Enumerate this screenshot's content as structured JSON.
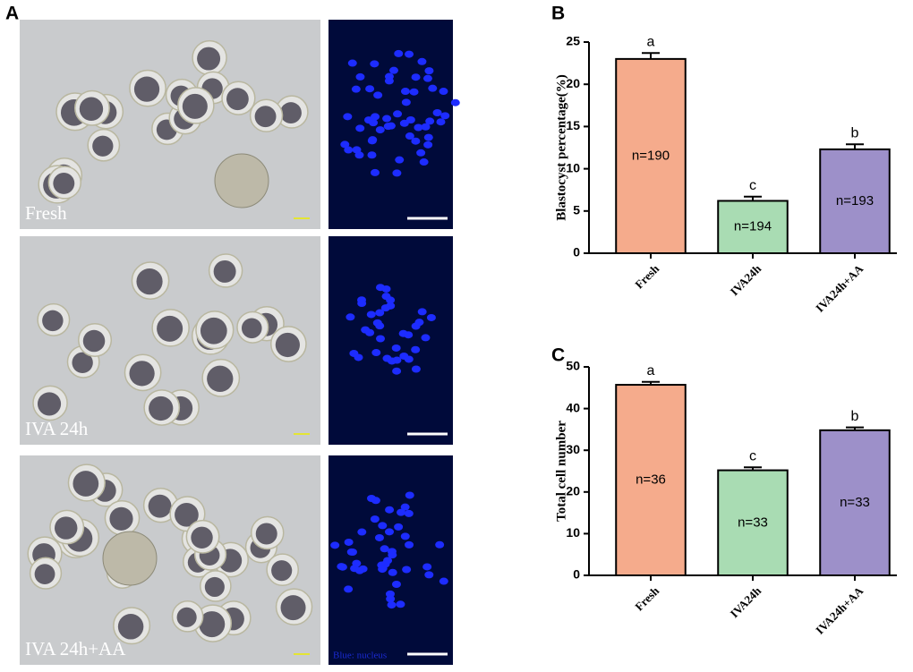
{
  "panel_labels": [
    "A",
    "B",
    "C"
  ],
  "images": [
    {
      "caption": "Fresh"
    },
    {
      "caption": "IVA 24h"
    },
    {
      "caption": "IVA 24h+AA",
      "stain_label": "Blue: nucleus"
    }
  ],
  "chart_data": [
    {
      "type": "bar",
      "y_label": "Blastocyst percentage(%)",
      "categories": [
        "Fresh",
        "IVA24h",
        "IVA24h+AA"
      ],
      "values": [
        23,
        6.2,
        12.3
      ],
      "errors": [
        0.7,
        0.5,
        0.6
      ],
      "colors": [
        "#f5ab8c",
        "#a9dcb3",
        "#9d90c9"
      ],
      "n_labels": [
        "n=190",
        "n=194",
        "n=193"
      ],
      "significance": [
        "a",
        "c",
        "b"
      ],
      "ylim": [
        0,
        25
      ],
      "yticks": [
        0,
        5,
        10,
        15,
        20,
        25
      ]
    },
    {
      "type": "bar",
      "y_label": "Total cell number",
      "categories": [
        "Fresh",
        "IVA24h",
        "IVA24h+AA"
      ],
      "values": [
        45.7,
        25.2,
        34.8
      ],
      "errors": [
        0.7,
        0.7,
        0.7
      ],
      "colors": [
        "#f5ab8c",
        "#a9dcb3",
        "#9d90c9"
      ],
      "n_labels": [
        "n=36",
        "n=33",
        "n=33"
      ],
      "significance": [
        "a",
        "c",
        "b"
      ],
      "ylim": [
        0,
        50
      ],
      "yticks": [
        0,
        10,
        20,
        30,
        40,
        50
      ]
    }
  ]
}
